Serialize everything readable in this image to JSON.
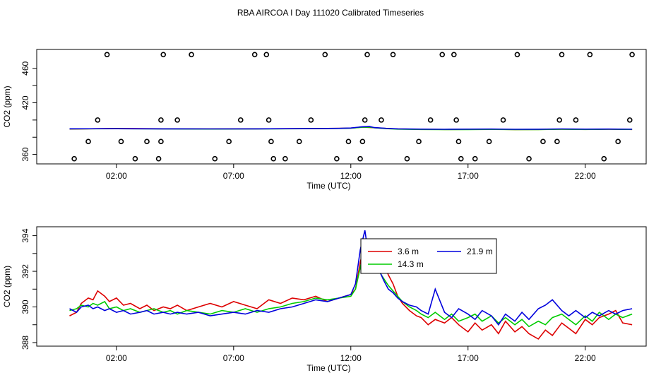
{
  "title": "RBA AIRCOA I  Day 111020  Calibrated Timeseries",
  "colors": {
    "red": "#dd0000",
    "green": "#00cc00",
    "blue": "#0000dd",
    "axis": "#000000"
  },
  "chart_data": [
    {
      "type": "scatter",
      "xlabel": "Time (UTC)",
      "ylabel": "CO2 (ppm)",
      "xlim": [
        -1.4,
        24.6
      ],
      "ylim": [
        349,
        482
      ],
      "x_ticks": [
        2,
        7,
        12,
        17,
        22
      ],
      "x_tick_labels": [
        "02:00",
        "07:00",
        "12:00",
        "17:00",
        "22:00"
      ],
      "y_ticks": [
        360,
        380,
        400,
        420,
        440,
        460
      ],
      "y_tick_labels": [
        "360",
        "",
        "",
        "420",
        "",
        "460"
      ],
      "grid": false,
      "points": [
        [
          0.2,
          355
        ],
        [
          0.8,
          375
        ],
        [
          1.2,
          400
        ],
        [
          1.6,
          476
        ],
        [
          2.2,
          375
        ],
        [
          2.8,
          355
        ],
        [
          3.3,
          375
        ],
        [
          3.8,
          355
        ],
        [
          3.9,
          375
        ],
        [
          3.9,
          400
        ],
        [
          4.0,
          476
        ],
        [
          4.6,
          400
        ],
        [
          5.2,
          476
        ],
        [
          6.2,
          355
        ],
        [
          6.8,
          375
        ],
        [
          7.3,
          400
        ],
        [
          7.9,
          476
        ],
        [
          8.4,
          476
        ],
        [
          8.5,
          400
        ],
        [
          8.6,
          375
        ],
        [
          8.7,
          355
        ],
        [
          9.2,
          355
        ],
        [
          9.8,
          375
        ],
        [
          10.3,
          400
        ],
        [
          10.9,
          476
        ],
        [
          11.4,
          355
        ],
        [
          11.9,
          375
        ],
        [
          12.4,
          355
        ],
        [
          12.5,
          375
        ],
        [
          12.6,
          400
        ],
        [
          12.7,
          476
        ],
        [
          13.3,
          400
        ],
        [
          13.8,
          476
        ],
        [
          14.4,
          355
        ],
        [
          14.9,
          375
        ],
        [
          15.4,
          400
        ],
        [
          15.9,
          476
        ],
        [
          16.4,
          476
        ],
        [
          16.5,
          400
        ],
        [
          16.6,
          375
        ],
        [
          16.7,
          355
        ],
        [
          17.3,
          355
        ],
        [
          17.9,
          375
        ],
        [
          18.5,
          400
        ],
        [
          19.1,
          476
        ],
        [
          19.6,
          355
        ],
        [
          20.2,
          375
        ],
        [
          20.8,
          375
        ],
        [
          20.9,
          400
        ],
        [
          21.0,
          476
        ],
        [
          21.6,
          400
        ],
        [
          22.2,
          476
        ],
        [
          22.8,
          355
        ],
        [
          23.4,
          375
        ],
        [
          23.9,
          400
        ],
        [
          24.0,
          476
        ]
      ],
      "series": [
        {
          "name": "",
          "color": "#dd0000",
          "x": [
            0,
            2,
            4,
            6,
            8,
            10,
            11.5,
            12,
            12.5,
            12.8,
            13,
            13.5,
            14,
            15,
            16,
            17,
            18,
            19,
            20,
            21,
            22,
            23,
            24
          ],
          "values": [
            389.5,
            390.2,
            389.8,
            389.6,
            389.8,
            390.0,
            390.3,
            390.6,
            391.8,
            391.4,
            391.0,
            390.2,
            389.6,
            389.2,
            389.0,
            389.1,
            389.2,
            388.9,
            389.0,
            389.4,
            389.1,
            389.2,
            389.0
          ]
        },
        {
          "name": "",
          "color": "#00cc00",
          "x": [
            0,
            2,
            4,
            6,
            8,
            10,
            11.5,
            12,
            12.5,
            12.8,
            13,
            13.5,
            14,
            15,
            16,
            17,
            18,
            19,
            20,
            21,
            22,
            23,
            24
          ],
          "values": [
            389.7,
            389.9,
            389.6,
            389.5,
            389.6,
            389.9,
            390.2,
            390.5,
            391.6,
            391.8,
            391.0,
            390.0,
            389.4,
            389.0,
            388.8,
            388.9,
            389.1,
            388.8,
            388.9,
            389.2,
            389.0,
            389.3,
            389.1
          ]
        },
        {
          "name": "",
          "color": "#0000dd",
          "x": [
            0,
            2,
            4,
            6,
            8,
            10,
            11.5,
            12,
            12.5,
            12.8,
            13,
            13.5,
            14,
            15,
            16,
            17,
            18,
            19,
            20,
            21,
            22,
            23,
            24
          ],
          "values": [
            389.8,
            389.9,
            389.7,
            389.6,
            389.7,
            390.0,
            390.3,
            390.7,
            392.2,
            392.4,
            391.2,
            390.3,
            389.7,
            389.4,
            389.2,
            389.4,
            389.5,
            389.2,
            389.3,
            389.6,
            389.4,
            389.5,
            389.3
          ]
        }
      ]
    },
    {
      "type": "line",
      "xlabel": "Time (UTC)",
      "ylabel": "CO2 (ppm)",
      "xlim": [
        -1.4,
        24.6
      ],
      "ylim": [
        387.8,
        394.5
      ],
      "x_ticks": [
        2,
        7,
        12,
        17,
        22
      ],
      "x_tick_labels": [
        "02:00",
        "07:00",
        "12:00",
        "17:00",
        "22:00"
      ],
      "y_ticks": [
        388,
        389,
        390,
        391,
        392,
        393,
        394
      ],
      "y_tick_labels": [
        "388",
        "",
        "390",
        "",
        "392",
        "",
        "394"
      ],
      "grid": false,
      "legend": {
        "placement": "top-center"
      },
      "series": [
        {
          "name": "3.6 m",
          "color": "#dd0000",
          "x": [
            0,
            0.3,
            0.5,
            0.8,
            1,
            1.2,
            1.5,
            1.7,
            2,
            2.3,
            2.6,
            3,
            3.3,
            3.6,
            4,
            4.3,
            4.6,
            5,
            5.5,
            6,
            6.5,
            7,
            7.5,
            8,
            8.5,
            9,
            9.5,
            10,
            10.5,
            11,
            11.5,
            12,
            12.2,
            12.4,
            12.6,
            12.8,
            13,
            13.2,
            13.4,
            13.6,
            13.8,
            14,
            14.2,
            14.5,
            14.8,
            15,
            15.3,
            15.6,
            16,
            16.3,
            16.6,
            17,
            17.3,
            17.6,
            18,
            18.3,
            18.6,
            19,
            19.3,
            19.6,
            20,
            20.3,
            20.6,
            21,
            21.3,
            21.6,
            22,
            22.3,
            22.6,
            23,
            23.3,
            23.6,
            24
          ],
          "values": [
            389.5,
            389.7,
            390.2,
            390.5,
            390.4,
            390.9,
            390.6,
            390.3,
            390.5,
            390.1,
            390.2,
            389.9,
            390.1,
            389.8,
            390.0,
            389.9,
            390.1,
            389.8,
            390.0,
            390.2,
            390.0,
            390.3,
            390.1,
            389.9,
            390.4,
            390.2,
            390.5,
            390.4,
            390.6,
            390.3,
            390.5,
            390.7,
            391.0,
            392.5,
            393.6,
            392.8,
            392.2,
            392.9,
            392.4,
            391.8,
            391.3,
            390.6,
            390.2,
            389.8,
            389.5,
            389.4,
            389.0,
            389.3,
            389.1,
            389.4,
            389.0,
            388.6,
            389.1,
            388.7,
            389.0,
            388.5,
            389.2,
            388.6,
            388.9,
            388.5,
            388.2,
            388.7,
            388.4,
            389.1,
            388.8,
            388.5,
            389.3,
            389.0,
            389.4,
            389.6,
            389.8,
            389.1,
            389.0
          ]
        },
        {
          "name": "14.3 m",
          "color": "#00cc00",
          "x": [
            0,
            0.3,
            0.5,
            0.8,
            1,
            1.2,
            1.5,
            1.7,
            2,
            2.3,
            2.6,
            3,
            3.3,
            3.6,
            4,
            4.3,
            4.6,
            5,
            5.5,
            6,
            6.5,
            7,
            7.5,
            8,
            8.5,
            9,
            9.5,
            10,
            10.5,
            11,
            11.5,
            12,
            12.2,
            12.4,
            12.6,
            12.8,
            13,
            13.2,
            13.4,
            13.6,
            13.8,
            14,
            14.2,
            14.5,
            14.8,
            15,
            15.3,
            15.6,
            16,
            16.3,
            16.6,
            17,
            17.3,
            17.6,
            18,
            18.3,
            18.6,
            19,
            19.3,
            19.6,
            20,
            20.3,
            20.6,
            21,
            21.3,
            21.6,
            22,
            22.3,
            22.6,
            23,
            23.3,
            23.6,
            24
          ],
          "values": [
            389.8,
            389.9,
            390.1,
            390.0,
            390.2,
            390.1,
            390.3,
            389.9,
            390.0,
            389.8,
            389.9,
            389.7,
            389.8,
            389.9,
            389.7,
            389.8,
            389.6,
            389.8,
            389.7,
            389.6,
            389.8,
            389.7,
            389.9,
            389.7,
            389.9,
            390.0,
            390.2,
            390.3,
            390.5,
            390.4,
            390.5,
            390.6,
            391.0,
            392.2,
            393.4,
            392.7,
            392.4,
            392.0,
            391.6,
            391.2,
            390.9,
            390.6,
            390.3,
            390.0,
            389.8,
            389.6,
            389.4,
            389.7,
            389.3,
            389.6,
            389.2,
            389.4,
            389.6,
            389.2,
            389.5,
            389.1,
            389.4,
            389.0,
            389.3,
            388.9,
            389.2,
            389.0,
            389.4,
            389.6,
            389.3,
            389.0,
            389.5,
            389.2,
            389.7,
            389.3,
            389.6,
            389.4,
            389.6
          ]
        },
        {
          "name": "21.9 m",
          "color": "#0000dd",
          "x": [
            0,
            0.3,
            0.5,
            0.8,
            1,
            1.2,
            1.5,
            1.7,
            2,
            2.3,
            2.6,
            3,
            3.3,
            3.6,
            4,
            4.3,
            4.6,
            5,
            5.5,
            6,
            6.5,
            7,
            7.5,
            8,
            8.5,
            9,
            9.5,
            10,
            10.5,
            11,
            11.5,
            12,
            12.2,
            12.4,
            12.6,
            12.8,
            13,
            13.2,
            13.4,
            13.6,
            13.8,
            14,
            14.2,
            14.5,
            14.8,
            15,
            15.3,
            15.6,
            16,
            16.3,
            16.6,
            17,
            17.3,
            17.6,
            18,
            18.3,
            18.6,
            19,
            19.3,
            19.6,
            20,
            20.3,
            20.6,
            21,
            21.3,
            21.6,
            22,
            22.3,
            22.6,
            23,
            23.3,
            23.6,
            24
          ],
          "values": [
            389.9,
            389.7,
            390.0,
            390.1,
            389.9,
            390.0,
            389.8,
            389.9,
            389.7,
            389.8,
            389.6,
            389.7,
            389.8,
            389.6,
            389.7,
            389.6,
            389.7,
            389.6,
            389.7,
            389.5,
            389.6,
            389.7,
            389.6,
            389.8,
            389.7,
            389.9,
            390.0,
            390.2,
            390.4,
            390.3,
            390.5,
            390.7,
            391.3,
            393.2,
            394.3,
            392.5,
            392.8,
            392.1,
            391.5,
            391.0,
            390.8,
            390.5,
            390.3,
            390.1,
            390.0,
            389.8,
            389.6,
            391.0,
            389.7,
            389.4,
            389.9,
            389.6,
            389.3,
            389.8,
            389.5,
            389.0,
            389.6,
            389.2,
            389.7,
            389.3,
            389.9,
            390.1,
            390.4,
            389.8,
            389.5,
            389.8,
            389.4,
            389.7,
            389.5,
            389.8,
            389.6,
            389.8,
            389.9
          ]
        }
      ]
    }
  ]
}
